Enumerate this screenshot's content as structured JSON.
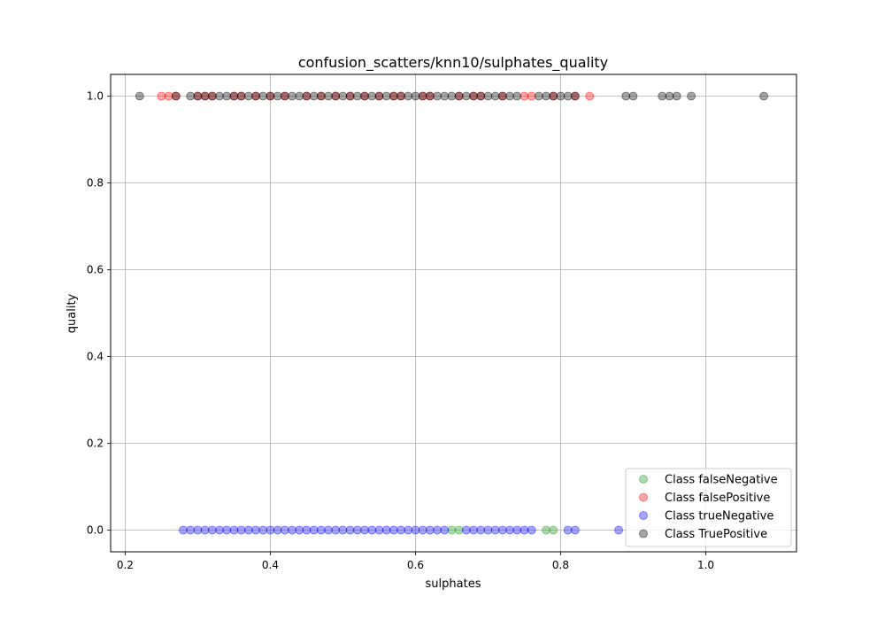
{
  "chart_data": {
    "type": "scatter",
    "title": "confusion_scatters/knn10/sulphates_quality",
    "xlabel": "sulphates",
    "ylabel": "quality",
    "xlim": [
      0.18,
      1.125
    ],
    "ylim": [
      -0.05,
      1.05
    ],
    "xticks": [
      0.2,
      0.4,
      0.6,
      0.8,
      1.0
    ],
    "xtick_labels": [
      "0.2",
      "0.4",
      "0.6",
      "0.8",
      "1.0"
    ],
    "yticks": [
      0.0,
      0.2,
      0.4,
      0.6,
      0.8,
      1.0
    ],
    "ytick_labels": [
      "0.0",
      "0.2",
      "0.4",
      "0.6",
      "0.8",
      "1.0"
    ],
    "grid": true,
    "legend_position": "bottom-right",
    "series": [
      {
        "name": "Class falseNegative",
        "color": "#2ca02c",
        "alpha": 0.4,
        "y": 0,
        "x": [
          0.65,
          0.66,
          0.78,
          0.79
        ]
      },
      {
        "name": "Class falsePositive",
        "color": "#ff0000",
        "alpha": 0.35,
        "y": 1,
        "x": [
          0.25,
          0.26,
          0.27,
          0.3,
          0.31,
          0.32,
          0.35,
          0.36,
          0.38,
          0.4,
          0.42,
          0.45,
          0.47,
          0.49,
          0.51,
          0.53,
          0.55,
          0.57,
          0.58,
          0.61,
          0.62,
          0.66,
          0.68,
          0.69,
          0.72,
          0.75,
          0.76,
          0.79,
          0.82,
          0.84
        ]
      },
      {
        "name": "Class trueNegative",
        "color": "#0000ff",
        "alpha": 0.35,
        "y": 0,
        "x": [
          0.28,
          0.29,
          0.3,
          0.31,
          0.32,
          0.33,
          0.34,
          0.35,
          0.36,
          0.37,
          0.38,
          0.39,
          0.4,
          0.41,
          0.42,
          0.43,
          0.44,
          0.45,
          0.46,
          0.47,
          0.48,
          0.49,
          0.5,
          0.51,
          0.52,
          0.53,
          0.54,
          0.55,
          0.56,
          0.57,
          0.58,
          0.59,
          0.6,
          0.61,
          0.62,
          0.63,
          0.64,
          0.67,
          0.68,
          0.69,
          0.7,
          0.71,
          0.72,
          0.73,
          0.74,
          0.75,
          0.76,
          0.81,
          0.82,
          0.88
        ]
      },
      {
        "name": "Class TruePositive",
        "color": "#000000",
        "alpha": 0.35,
        "y": 1,
        "x": [
          0.22,
          0.27,
          0.29,
          0.3,
          0.31,
          0.32,
          0.33,
          0.34,
          0.35,
          0.36,
          0.37,
          0.38,
          0.39,
          0.4,
          0.41,
          0.42,
          0.43,
          0.44,
          0.45,
          0.46,
          0.47,
          0.48,
          0.49,
          0.5,
          0.51,
          0.52,
          0.53,
          0.54,
          0.55,
          0.56,
          0.57,
          0.58,
          0.59,
          0.6,
          0.61,
          0.62,
          0.63,
          0.64,
          0.65,
          0.66,
          0.67,
          0.68,
          0.69,
          0.7,
          0.71,
          0.72,
          0.73,
          0.74,
          0.77,
          0.78,
          0.79,
          0.8,
          0.81,
          0.82,
          0.89,
          0.9,
          0.94,
          0.95,
          0.96,
          0.98,
          1.08
        ]
      }
    ]
  }
}
